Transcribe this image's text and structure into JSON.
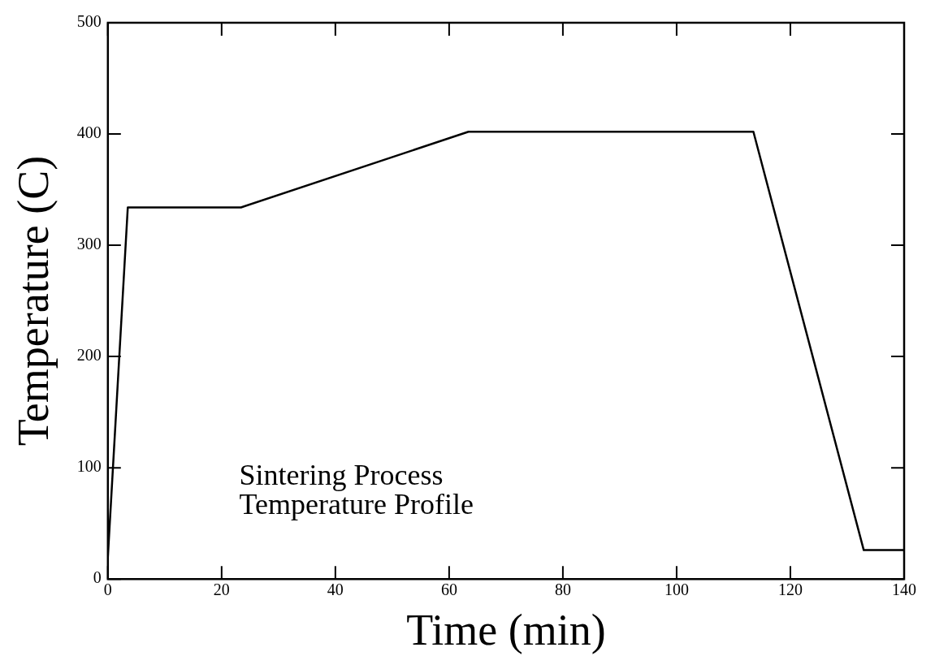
{
  "chart_data": {
    "type": "line",
    "xlabel": "Time (min)",
    "ylabel": "Temperature (C)",
    "annotations": [
      "Sintering Process\nTemperature Profile"
    ],
    "series": [
      {
        "x": [
          0,
          3.5,
          23.4,
          63.4,
          113.5,
          132.9,
          140
        ],
        "values": [
          20,
          334,
          334,
          402,
          402,
          26,
          26
        ],
        "color": "#000000"
      }
    ],
    "xlim": [
      0,
      140
    ],
    "xticks": [
      0,
      20,
      40,
      60,
      80,
      100,
      120,
      140
    ],
    "ylim": [
      0,
      500
    ],
    "yticks": [
      0,
      100,
      200,
      300,
      400,
      500
    ],
    "grid": false,
    "legend": false,
    "marker": "none",
    "line_style": "solid"
  }
}
